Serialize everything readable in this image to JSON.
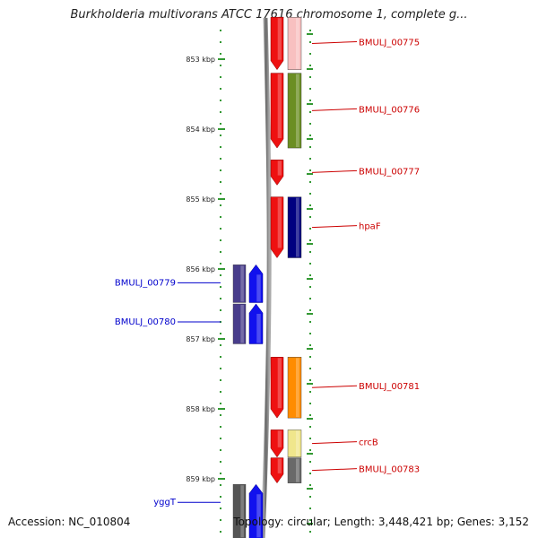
{
  "title": "Burkholderia multivorans ATCC 17616 chromosome 1, complete g...",
  "footer": {
    "accession": "Accession: NC_010804",
    "summary": "Topology: circular; Length: 3,448,421 bp; Genes: 3,152"
  },
  "colors": {
    "axis": "#339933",
    "backbone": "#777777",
    "forward_gene": "#ee1111",
    "reverse_gene": "#1111ee",
    "forward_label": "#cc0000",
    "reverse_label": "#0000cc"
  },
  "ticks": [
    {
      "label": "853 kbp",
      "kbp": 853
    },
    {
      "label": "854 kbp",
      "kbp": 854
    },
    {
      "label": "855 kbp",
      "kbp": 855
    },
    {
      "label": "856 kbp",
      "kbp": 856
    },
    {
      "label": "857 kbp",
      "kbp": 857
    },
    {
      "label": "858 kbp",
      "kbp": 858
    },
    {
      "label": "859 kbp",
      "kbp": 859
    }
  ],
  "forward_genes": [
    {
      "name": "BMULJ_00775",
      "start_kbp": 852.4,
      "end_kbp": 853.15,
      "feature_color": "#f8c0c0"
    },
    {
      "name": "BMULJ_00776",
      "start_kbp": 853.2,
      "end_kbp": 854.27,
      "feature_color": "#6b8e23"
    },
    {
      "name": "BMULJ_00777",
      "start_kbp": 854.44,
      "end_kbp": 854.8,
      "feature_color": null
    },
    {
      "name": "hpaF",
      "start_kbp": 854.97,
      "end_kbp": 855.84,
      "feature_color": "#000080"
    },
    {
      "name": "BMULJ_00781",
      "start_kbp": 857.26,
      "end_kbp": 858.13,
      "feature_color": "#ff8c00"
    },
    {
      "name": "crcB",
      "start_kbp": 858.3,
      "end_kbp": 858.69,
      "feature_color": "#f0e68c"
    },
    {
      "name": "BMULJ_00783",
      "start_kbp": 858.7,
      "end_kbp": 859.06,
      "feature_color": "#696969"
    }
  ],
  "reverse_genes": [
    {
      "name": "BMULJ_00779",
      "start_kbp": 855.94,
      "end_kbp": 856.48,
      "feature_color": "#483d8b"
    },
    {
      "name": "BMULJ_00780",
      "start_kbp": 856.5,
      "end_kbp": 857.07,
      "feature_color": "#483d8b"
    },
    {
      "name": "yggT",
      "start_kbp": 859.08,
      "end_kbp": 859.85,
      "feature_color": "#555555"
    }
  ]
}
